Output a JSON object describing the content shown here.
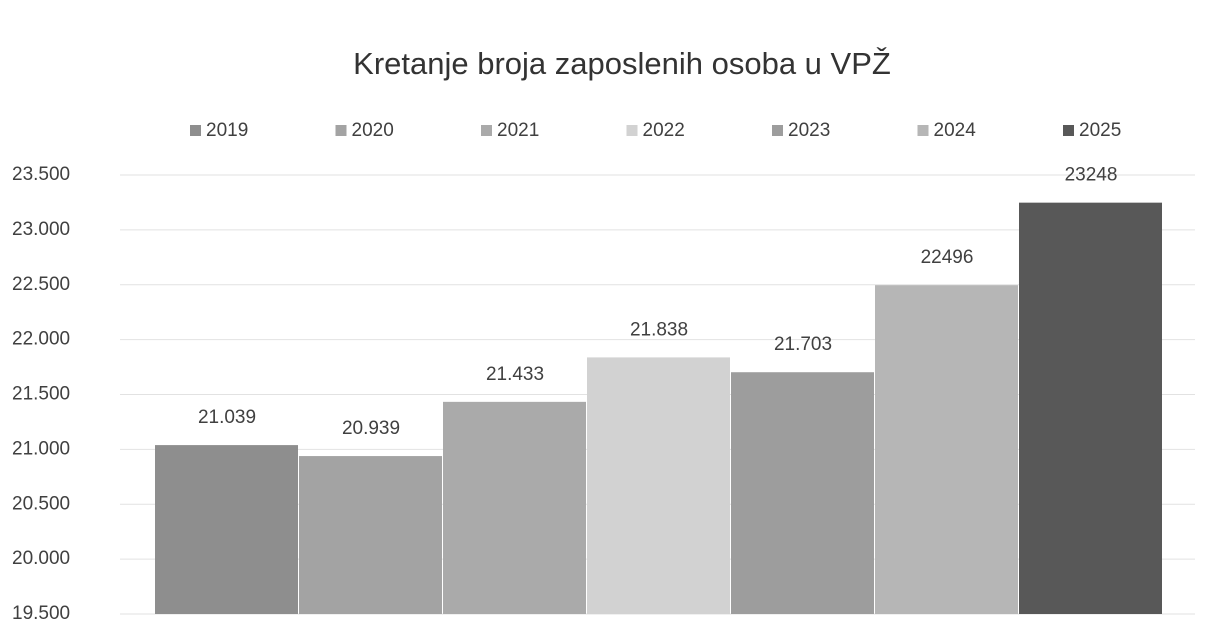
{
  "chart_data": {
    "type": "bar",
    "title": "Kretanje broja zaposlenih osoba u VPŽ",
    "categories": [
      null
    ],
    "series": [
      {
        "name": "2019",
        "color": "#8e8e8e",
        "values": [
          21039
        ],
        "value_labels": [
          "21.039"
        ]
      },
      {
        "name": "2020",
        "color": "#a3a3a3",
        "values": [
          20939
        ],
        "value_labels": [
          "20.939"
        ]
      },
      {
        "name": "2021",
        "color": "#aaaaaa",
        "values": [
          21433
        ],
        "value_labels": [
          "21.433"
        ]
      },
      {
        "name": "2022",
        "color": "#d2d2d2",
        "values": [
          21838
        ],
        "value_labels": [
          "21.838"
        ]
      },
      {
        "name": "2023",
        "color": "#9d9d9d",
        "values": [
          21703
        ],
        "value_labels": [
          "21.703"
        ]
      },
      {
        "name": "2024",
        "color": "#b6b6b6",
        "values": [
          22496
        ],
        "value_labels": [
          "22496"
        ]
      },
      {
        "name": "2025",
        "color": "#585858",
        "values": [
          23248
        ],
        "value_labels": [
          "23248"
        ]
      }
    ],
    "ylim": [
      19500,
      23500
    ],
    "yticks": [
      {
        "value": 19500,
        "label": "19.500"
      },
      {
        "value": 20000,
        "label": "20.000"
      },
      {
        "value": 20500,
        "label": "20.500"
      },
      {
        "value": 21000,
        "label": "21.000"
      },
      {
        "value": 21500,
        "label": "21.500"
      },
      {
        "value": 22000,
        "label": "22.000"
      },
      {
        "value": 22500,
        "label": "22.500"
      },
      {
        "value": 23000,
        "label": "23.000"
      },
      {
        "value": 23500,
        "label": "23.500"
      }
    ],
    "grid": true,
    "legend": "top"
  }
}
